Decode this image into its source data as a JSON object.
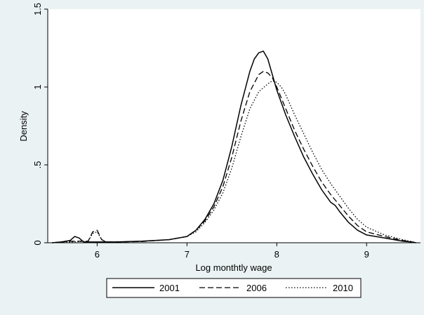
{
  "chart_data": {
    "type": "line",
    "xlabel": "Log monthtly wage",
    "ylabel": "Density",
    "xlim": [
      5.45,
      9.6
    ],
    "ylim": [
      0,
      1.5
    ],
    "xticks": [
      {
        "value": 6,
        "label": "6"
      },
      {
        "value": 7,
        "label": "7"
      },
      {
        "value": 8,
        "label": "8"
      },
      {
        "value": 9,
        "label": "9"
      }
    ],
    "yticks": [
      {
        "value": 0,
        "label": "0"
      },
      {
        "value": 0.5,
        "label": ".5"
      },
      {
        "value": 1,
        "label": "1"
      },
      {
        "value": 1.5,
        "label": "1.5"
      }
    ],
    "grid": false,
    "legend_position": "bottom",
    "colors": {
      "background": "#eaf2f3",
      "plot_area": "#ffffff",
      "line": "#000000"
    },
    "series": [
      {
        "name": "2001",
        "style": "solid",
        "x": [
          5.5,
          5.6,
          5.7,
          5.75,
          5.8,
          5.85,
          5.9,
          6.0,
          6.2,
          6.5,
          6.8,
          7.0,
          7.1,
          7.2,
          7.3,
          7.4,
          7.5,
          7.6,
          7.7,
          7.75,
          7.8,
          7.85,
          7.9,
          7.95,
          8.0,
          8.1,
          8.2,
          8.3,
          8.4,
          8.5,
          8.6,
          8.65,
          8.7,
          8.8,
          8.9,
          9.0,
          9.2,
          9.4,
          9.5,
          9.55
        ],
        "y": [
          0.0,
          0.005,
          0.015,
          0.04,
          0.03,
          0.005,
          0.005,
          0.005,
          0.005,
          0.01,
          0.02,
          0.04,
          0.08,
          0.15,
          0.25,
          0.4,
          0.62,
          0.88,
          1.1,
          1.18,
          1.22,
          1.23,
          1.18,
          1.08,
          0.98,
          0.82,
          0.68,
          0.55,
          0.44,
          0.34,
          0.26,
          0.24,
          0.2,
          0.13,
          0.08,
          0.05,
          0.03,
          0.01,
          0.005,
          0.0
        ]
      },
      {
        "name": "2006",
        "style": "dashed",
        "x": [
          5.5,
          5.7,
          5.9,
          5.95,
          6.0,
          6.05,
          6.1,
          6.2,
          6.5,
          6.8,
          7.0,
          7.1,
          7.2,
          7.3,
          7.4,
          7.5,
          7.6,
          7.7,
          7.8,
          7.85,
          7.9,
          7.95,
          8.0,
          8.1,
          8.2,
          8.3,
          8.4,
          8.5,
          8.6,
          8.7,
          8.8,
          8.9,
          9.0,
          9.2,
          9.4,
          9.5,
          9.55
        ],
        "y": [
          0.0,
          0.01,
          0.01,
          0.07,
          0.08,
          0.02,
          0.005,
          0.005,
          0.008,
          0.02,
          0.04,
          0.08,
          0.14,
          0.23,
          0.36,
          0.55,
          0.78,
          0.97,
          1.08,
          1.1,
          1.09,
          1.06,
          1.0,
          0.86,
          0.72,
          0.6,
          0.49,
          0.39,
          0.31,
          0.24,
          0.17,
          0.11,
          0.07,
          0.04,
          0.015,
          0.005,
          0.0
        ]
      },
      {
        "name": "2010",
        "style": "dotted",
        "x": [
          5.5,
          5.7,
          5.9,
          5.95,
          6.0,
          6.05,
          6.1,
          6.2,
          6.5,
          6.8,
          7.0,
          7.1,
          7.2,
          7.3,
          7.4,
          7.5,
          7.6,
          7.7,
          7.8,
          7.9,
          7.95,
          8.0,
          8.05,
          8.1,
          8.2,
          8.3,
          8.4,
          8.5,
          8.6,
          8.7,
          8.8,
          8.9,
          9.0,
          9.2,
          9.4,
          9.5,
          9.55
        ],
        "y": [
          0.0,
          0.005,
          0.01,
          0.06,
          0.07,
          0.02,
          0.005,
          0.005,
          0.008,
          0.02,
          0.04,
          0.07,
          0.13,
          0.21,
          0.32,
          0.48,
          0.68,
          0.86,
          0.97,
          1.02,
          1.04,
          1.03,
          1.0,
          0.95,
          0.82,
          0.7,
          0.58,
          0.47,
          0.38,
          0.3,
          0.22,
          0.15,
          0.1,
          0.05,
          0.02,
          0.008,
          0.0
        ]
      }
    ]
  }
}
